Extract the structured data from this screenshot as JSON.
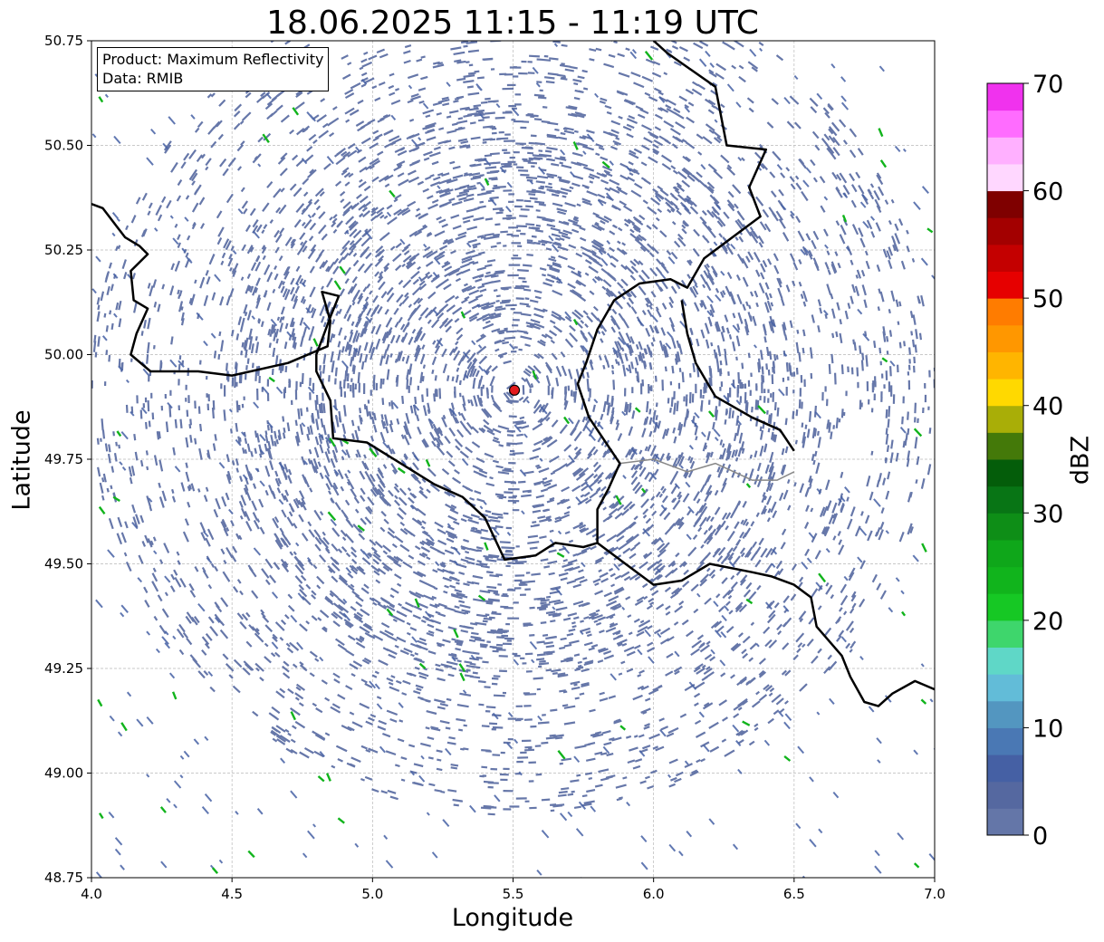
{
  "title": "18.06.2025 11:15 - 11:19 UTC",
  "info_box": {
    "product": "Product: Maximum Reflectivity",
    "data": "Data: RMIB"
  },
  "axes": {
    "xlabel": "Longitude",
    "ylabel": "Latitude",
    "xlim": [
      4.0,
      7.0
    ],
    "ylim": [
      48.75,
      50.75
    ],
    "xticks": [
      "4.0",
      "4.5",
      "5.0",
      "5.5",
      "6.0",
      "6.5",
      "7.0"
    ],
    "xtick_values": [
      4.0,
      4.5,
      5.0,
      5.5,
      6.0,
      6.5,
      7.0
    ],
    "yticks": [
      "48.75",
      "49.00",
      "49.25",
      "49.50",
      "49.75",
      "50.00",
      "50.25",
      "50.50",
      "50.75"
    ],
    "ytick_values": [
      48.75,
      49.0,
      49.25,
      49.5,
      49.75,
      50.0,
      50.25,
      50.5,
      50.75
    ],
    "grid": true
  },
  "radar_site": {
    "lon": 5.505,
    "lat": 49.915,
    "color": "#e31a1c"
  },
  "colorbar": {
    "label": "dBZ",
    "min": 0,
    "max": 70,
    "step": 2.5,
    "tick_values": [
      0,
      10,
      20,
      30,
      40,
      50,
      60,
      70
    ],
    "tick_labels": [
      "0",
      "10",
      "20",
      "30",
      "40",
      "50",
      "60",
      "70"
    ],
    "colors": [
      "#6476a8",
      "#5568a0",
      "#4560a4",
      "#4a78b4",
      "#5396c0",
      "#62bcd8",
      "#5fd7c7",
      "#3ed66c",
      "#16c824",
      "#11b41c",
      "#0fa71a",
      "#0e8e17",
      "#087515",
      "#045d0a",
      "#447909",
      "#a9ae07",
      "#ffd900",
      "#ffb500",
      "#ff9700",
      "#ff7c00",
      "#e60000",
      "#c40000",
      "#a30000",
      "#7f0000",
      "#ffd7ff",
      "#ffb0ff",
      "#ff6cff",
      "#f032ee"
    ]
  },
  "map_layers": {
    "belgium_border": [
      [
        4.0,
        50.36
      ],
      [
        4.04,
        50.35
      ],
      [
        4.12,
        50.28
      ],
      [
        4.17,
        50.26
      ],
      [
        4.2,
        50.24
      ],
      [
        4.14,
        50.2
      ],
      [
        4.15,
        50.13
      ],
      [
        4.2,
        50.11
      ],
      [
        4.16,
        50.05
      ],
      [
        4.14,
        50.0
      ],
      [
        4.21,
        49.96
      ],
      [
        4.38,
        49.96
      ],
      [
        4.5,
        49.95
      ],
      [
        4.7,
        49.98
      ],
      [
        4.84,
        50.02
      ],
      [
        4.85,
        50.08
      ],
      [
        4.82,
        50.15
      ],
      [
        4.88,
        50.14
      ],
      [
        4.85,
        50.09
      ],
      [
        4.8,
        50.0
      ],
      [
        4.8,
        49.96
      ],
      [
        4.85,
        49.89
      ],
      [
        4.86,
        49.8
      ],
      [
        4.98,
        49.79
      ],
      [
        5.1,
        49.74
      ],
      [
        5.22,
        49.69
      ],
      [
        5.32,
        49.66
      ],
      [
        5.4,
        49.61
      ],
      [
        5.47,
        49.51
      ],
      [
        5.58,
        49.52
      ],
      [
        5.65,
        49.55
      ],
      [
        5.75,
        49.54
      ],
      [
        5.8,
        49.55
      ],
      [
        5.8,
        49.63
      ],
      [
        5.84,
        49.68
      ],
      [
        5.88,
        49.74
      ],
      [
        5.77,
        49.85
      ],
      [
        5.73,
        49.93
      ],
      [
        5.76,
        49.98
      ],
      [
        5.8,
        50.06
      ],
      [
        5.86,
        50.13
      ],
      [
        5.95,
        50.17
      ],
      [
        6.06,
        50.18
      ],
      [
        6.12,
        50.16
      ],
      [
        6.18,
        50.23
      ],
      [
        6.38,
        50.33
      ],
      [
        6.34,
        50.4
      ],
      [
        6.4,
        50.49
      ],
      [
        6.26,
        50.5
      ],
      [
        6.22,
        50.64
      ],
      [
        6.05,
        50.72
      ],
      [
        6.0,
        50.75
      ]
    ],
    "lux_germany_border": [
      [
        6.5,
        49.77
      ],
      [
        6.45,
        49.82
      ],
      [
        6.35,
        49.85
      ],
      [
        6.22,
        49.9
      ],
      [
        6.15,
        49.98
      ],
      [
        6.12,
        50.05
      ],
      [
        6.1,
        50.13
      ]
    ],
    "france_border": [
      [
        5.8,
        49.55
      ],
      [
        5.9,
        49.5
      ],
      [
        6.0,
        49.45
      ],
      [
        6.1,
        49.46
      ],
      [
        6.2,
        49.5
      ],
      [
        6.35,
        49.48
      ],
      [
        6.42,
        49.47
      ],
      [
        6.5,
        49.45
      ],
      [
        6.56,
        49.42
      ],
      [
        6.58,
        49.35
      ],
      [
        6.67,
        49.28
      ],
      [
        6.7,
        49.23
      ],
      [
        6.75,
        49.17
      ],
      [
        6.8,
        49.16
      ],
      [
        6.85,
        49.19
      ],
      [
        6.93,
        49.22
      ],
      [
        7.0,
        49.2
      ]
    ],
    "lux_internal": [
      [
        5.88,
        49.74
      ],
      [
        6.0,
        49.75
      ],
      [
        6.12,
        49.72
      ],
      [
        6.22,
        49.74
      ],
      [
        6.35,
        49.7
      ],
      [
        6.44,
        49.7
      ],
      [
        6.5,
        49.72
      ]
    ]
  }
}
